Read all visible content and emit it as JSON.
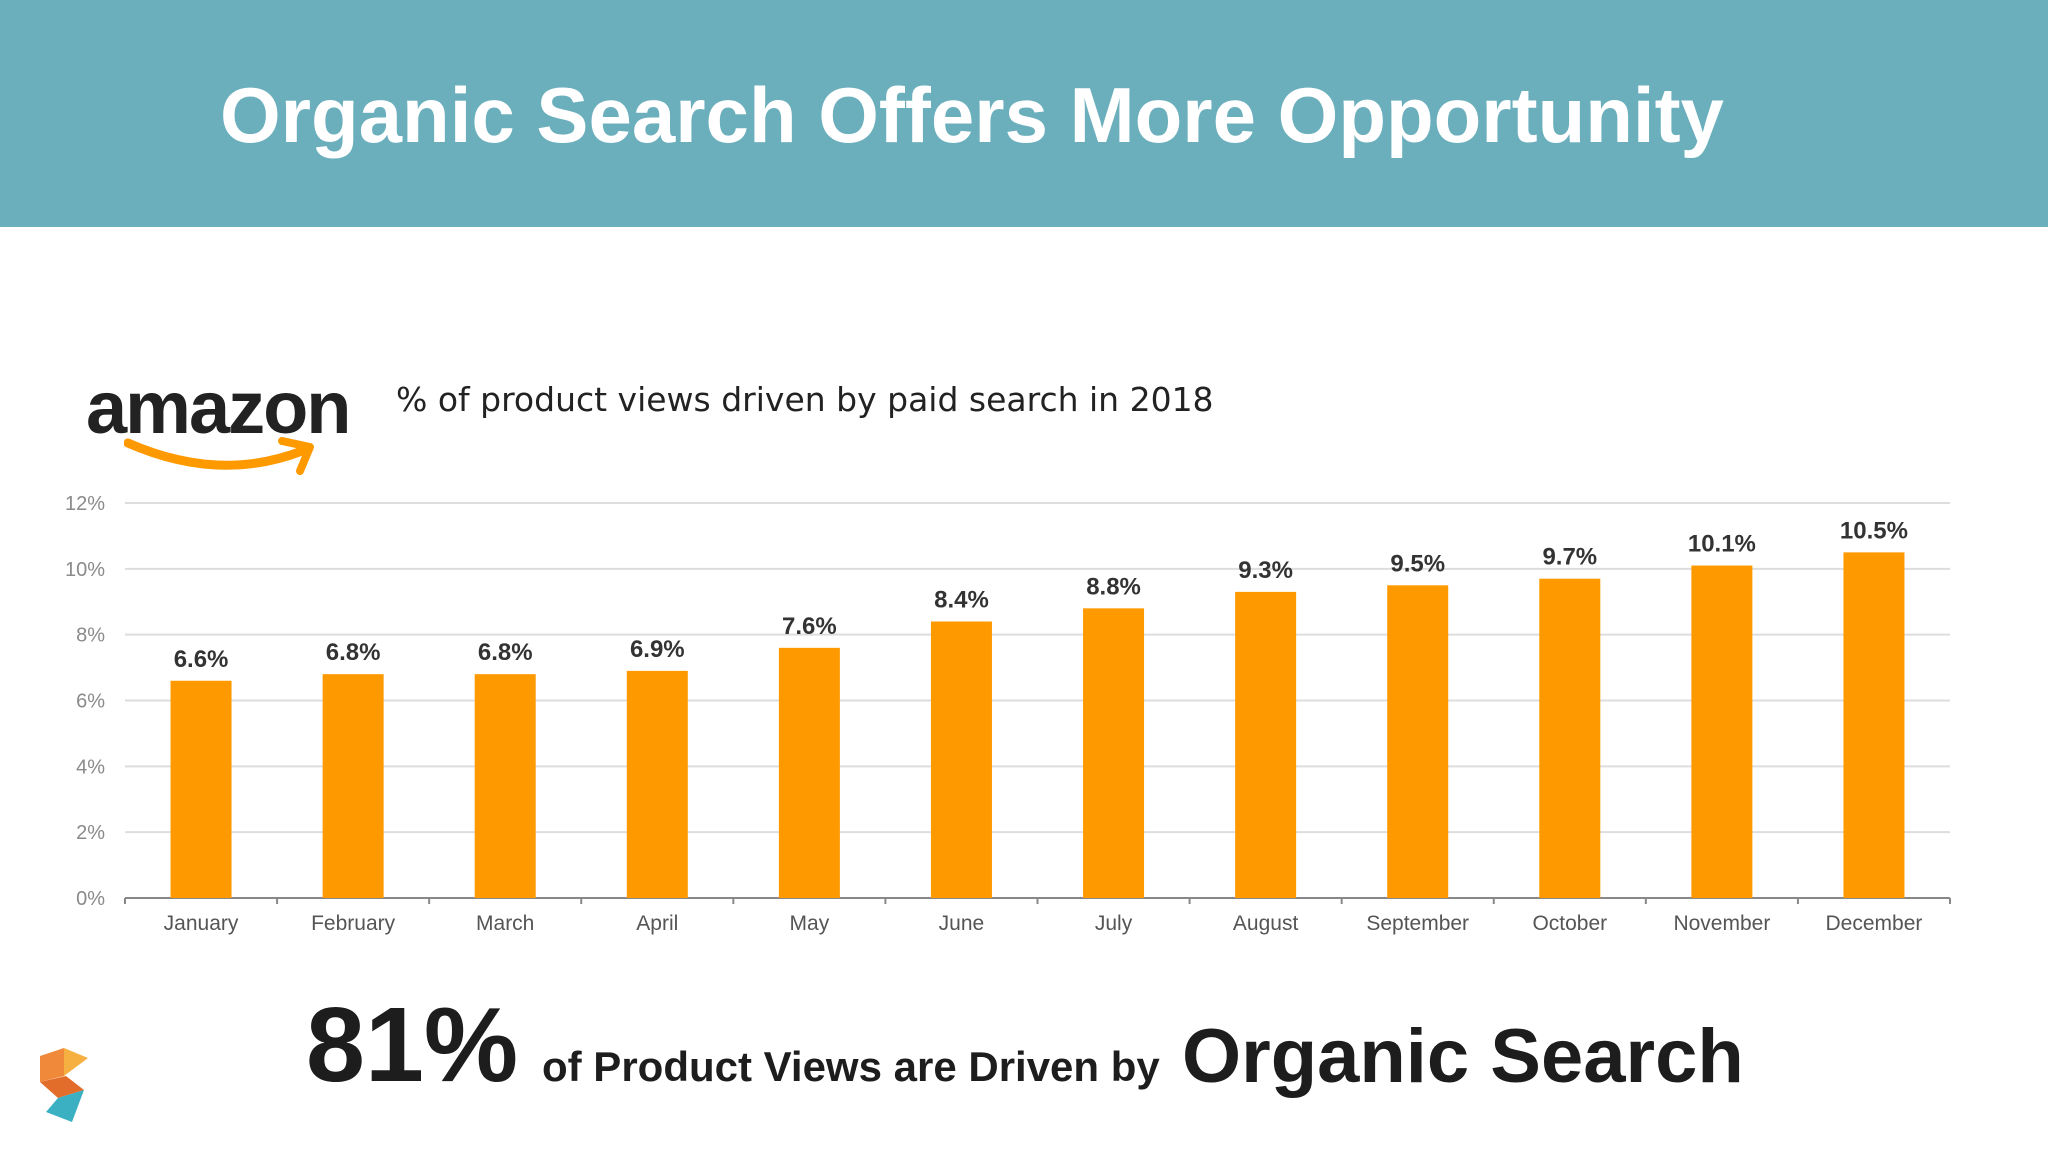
{
  "slide": {
    "title": "Organic Search Offers More Opportunity",
    "subtitle": "% of product views driven by paid search in 2018",
    "logo_text": "amazon"
  },
  "footer": {
    "stat_value": "81%",
    "stat_text": "of Product Views are Driven by",
    "stat_emphasis": "Organic Search"
  },
  "colors": {
    "banner": "#6bafbd",
    "bar": "#ff9900",
    "smile": "#ff9900"
  },
  "chart_data": {
    "type": "bar",
    "categories": [
      "January",
      "February",
      "March",
      "April",
      "May",
      "June",
      "July",
      "August",
      "September",
      "October",
      "November",
      "December"
    ],
    "values": [
      6.6,
      6.8,
      6.8,
      6.9,
      7.6,
      8.4,
      8.8,
      9.3,
      9.5,
      9.7,
      10.1,
      10.5
    ],
    "data_labels": [
      "6.6%",
      "6.8%",
      "6.8%",
      "6.9%",
      "7.6%",
      "8.4%",
      "8.8%",
      "9.3%",
      "9.5%",
      "9.7%",
      "10.1%",
      "10.5%"
    ],
    "yticks": [
      0,
      2,
      4,
      6,
      8,
      10,
      12
    ],
    "ytick_labels": [
      "0%",
      "2%",
      "4%",
      "6%",
      "8%",
      "10%",
      "12%"
    ],
    "ylim": [
      0,
      12
    ],
    "grid": true,
    "title": "% of product views driven by paid search in 2018",
    "xlabel": "",
    "ylabel": ""
  }
}
